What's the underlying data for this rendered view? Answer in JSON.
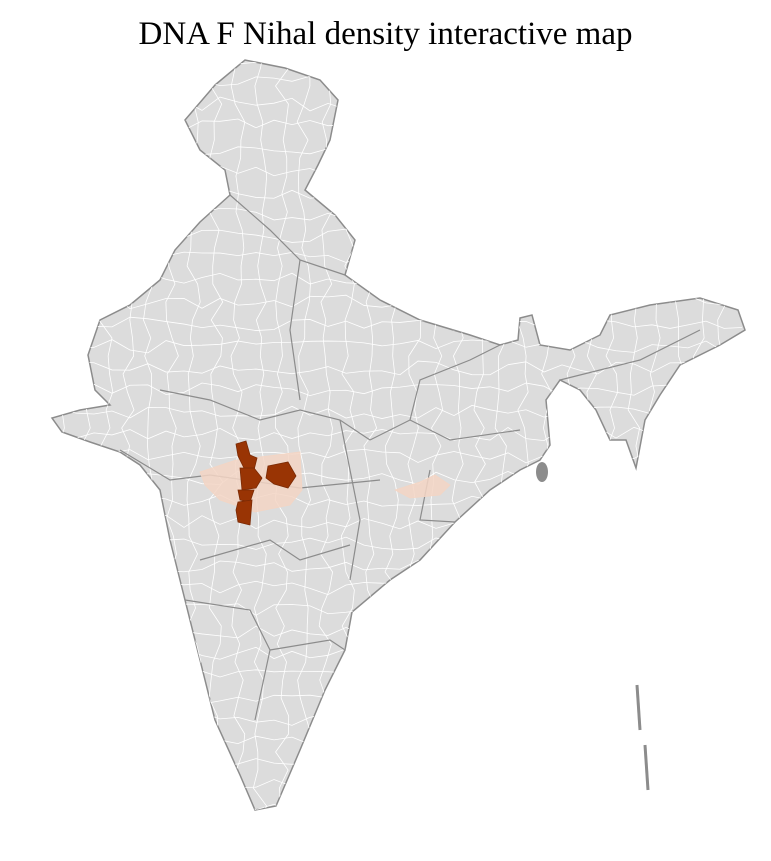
{
  "title": "DNA F Nihal density interactive map",
  "map": {
    "region": "India districts",
    "colors": {
      "land": "#dcdcdc",
      "district_border": "#ffffff",
      "state_border": "#8c8c8c",
      "density_high": "#993404",
      "density_low": "#f3d5c4"
    },
    "highlighted_districts": [
      {
        "level": "high"
      },
      {
        "level": "high"
      },
      {
        "level": "high"
      },
      {
        "level": "high"
      },
      {
        "level": "high"
      },
      {
        "level": "low"
      },
      {
        "level": "low"
      }
    ]
  }
}
